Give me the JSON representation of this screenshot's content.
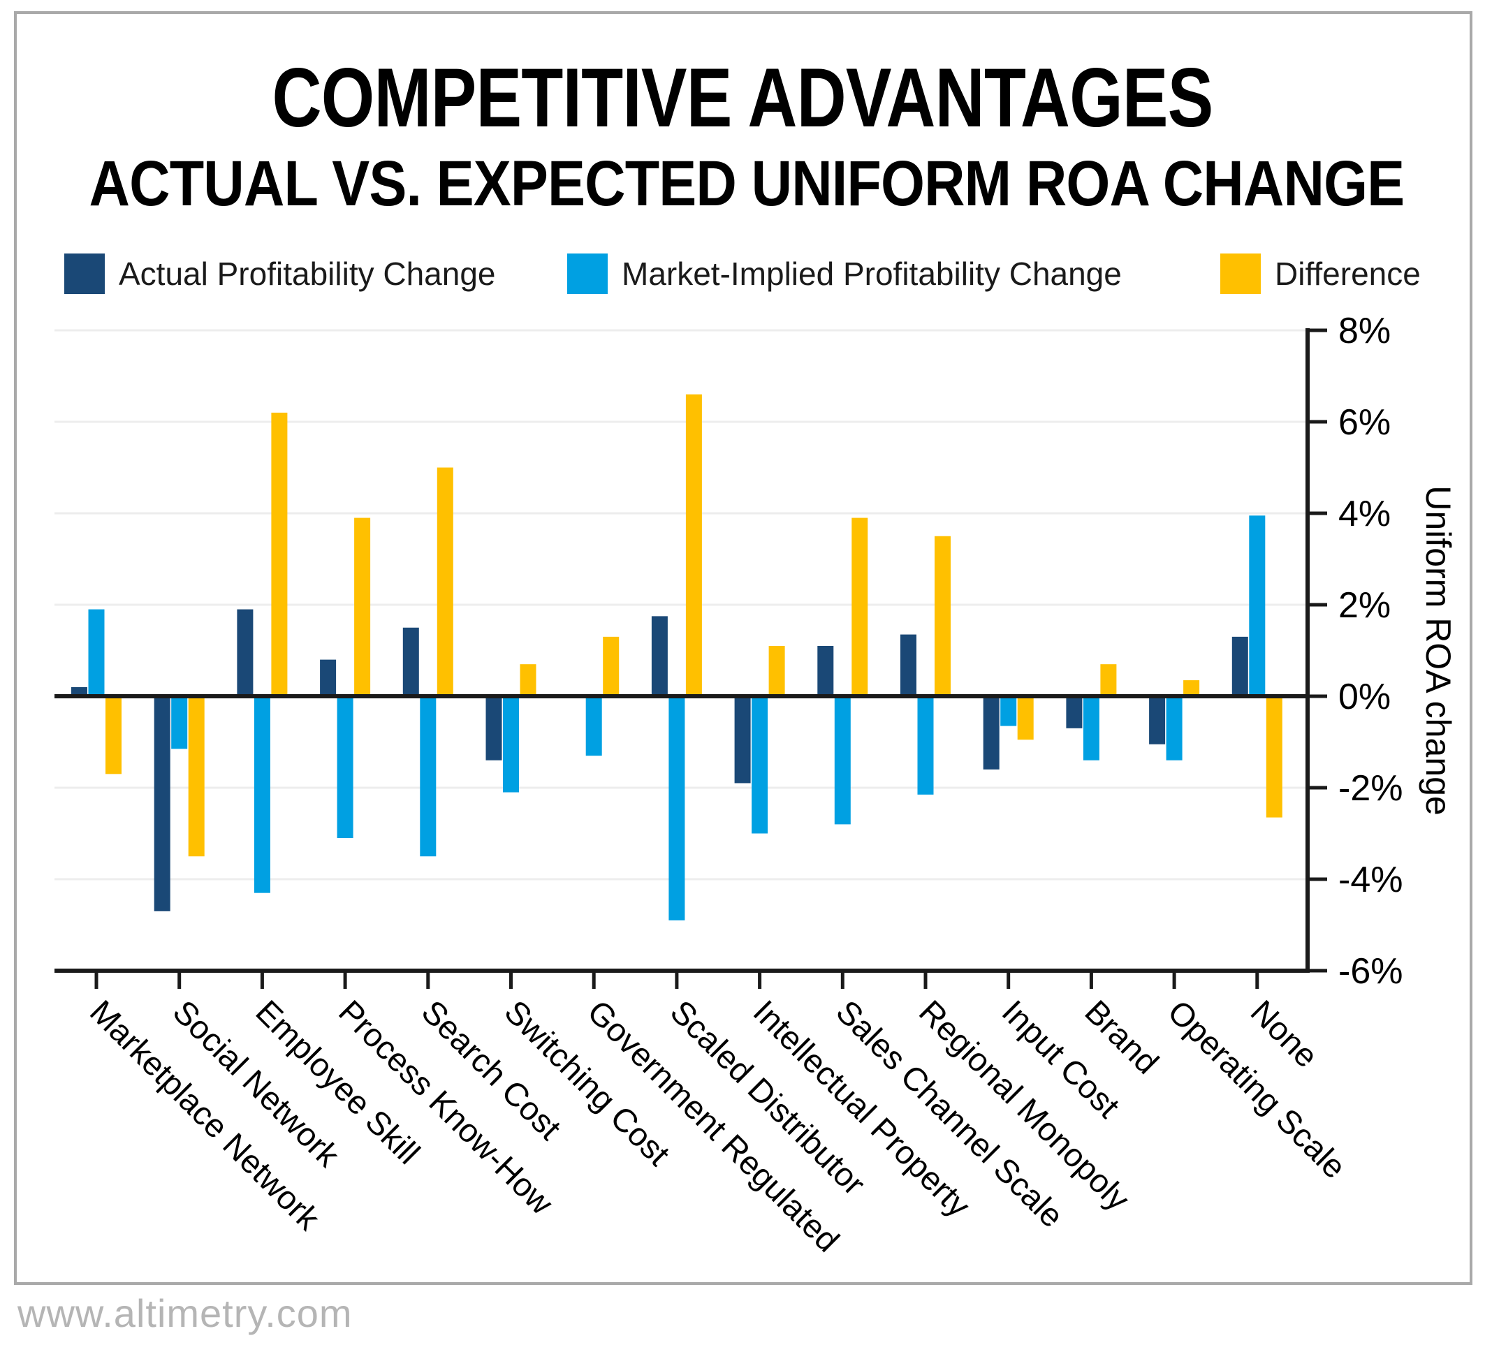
{
  "header": {
    "title": "COMPETITIVE ADVANTAGES",
    "subtitle": "ACTUAL VS. EXPECTED UNIFORM ROA CHANGE"
  },
  "footer": {
    "website": "www.altimetry.com"
  },
  "chart_data": {
    "type": "bar",
    "title": "COMPETITIVE ADVANTAGES",
    "subtitle": "ACTUAL VS. EXPECTED UNIFORM ROA CHANGE",
    "categories": [
      "Marketplace Network",
      "Social Network",
      "Employee Skill",
      "Process Know-How",
      "Search Cost",
      "Switching Cost",
      "Government Regulated",
      "Scaled Distributor",
      "Intellectual Property",
      "Sales Channel Scale",
      "Regional Monopoly",
      "Input Cost",
      "Brand",
      "Operating Scale",
      "None"
    ],
    "series": [
      {
        "name": "Actual Profitability Change",
        "color": "#1A4876",
        "values": [
          0.2,
          -4.7,
          1.9,
          0.8,
          1.5,
          -1.4,
          0.0,
          1.75,
          -1.9,
          1.1,
          1.35,
          -1.6,
          -0.7,
          -1.05,
          1.3
        ]
      },
      {
        "name": "Market-Implied Profitability Change",
        "color": "#00A0E2",
        "values": [
          1.9,
          -1.15,
          -4.3,
          -3.1,
          -3.5,
          -2.1,
          -1.3,
          -4.9,
          -3.0,
          -2.8,
          -2.15,
          -0.65,
          -1.4,
          -1.4,
          3.95
        ]
      },
      {
        "name": "Difference",
        "color": "#FFC000",
        "values": [
          -1.7,
          -3.5,
          6.2,
          3.9,
          5.0,
          0.7,
          1.3,
          6.6,
          1.1,
          3.9,
          3.5,
          -0.95,
          0.7,
          0.35,
          -2.65
        ]
      }
    ],
    "ylabel": "Uniform ROA change",
    "xlabel": "",
    "ylim": [
      -6,
      8
    ],
    "yticks": [
      8,
      6,
      4,
      2,
      0,
      -2,
      -4,
      -6
    ],
    "ytick_labels": [
      "8%",
      "6%",
      "4%",
      "2%",
      "0%",
      "-2%",
      "-4%",
      "-6%"
    ],
    "grid": "horizontal",
    "legend_position": "top",
    "axis_color": "#1a1a1a",
    "grid_color": "#ededed"
  }
}
